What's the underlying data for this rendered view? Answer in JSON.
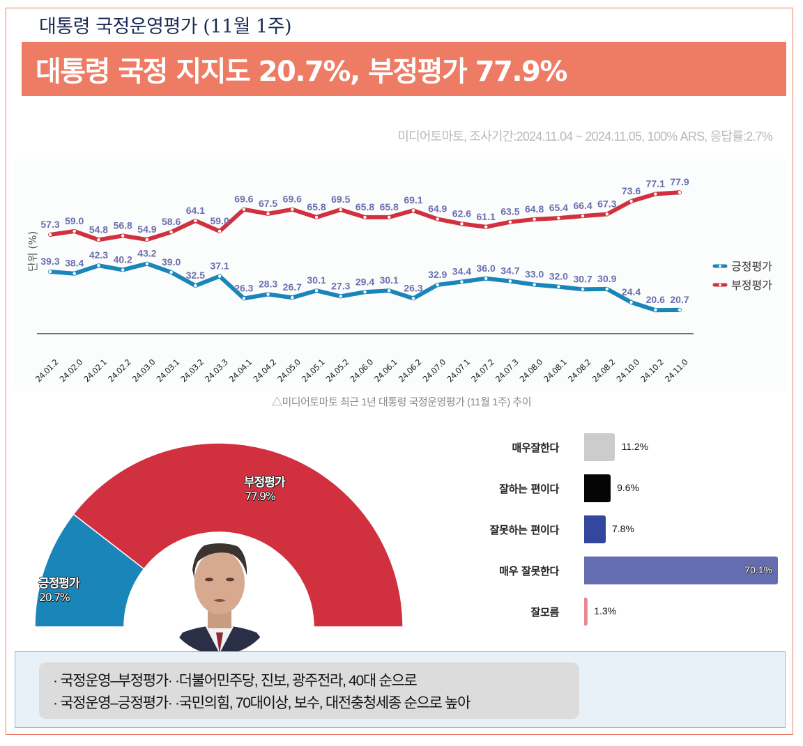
{
  "header": {
    "subtitle": "대통령 국정운영평가 (11월 1주)",
    "headline": "대통령 국정 지지도 20.7%, 부정평가 77.9%",
    "source": "미디어토마토, 조사기간:2024.11.04 ~ 2024.11.05, 100% ARS, 응답률:2.7%"
  },
  "colors": {
    "accent": "#ee7b64",
    "positive": "#1a85b8",
    "negative": "#d1303f",
    "data_label": "#6b6fae"
  },
  "chart_data": [
    {
      "type": "line",
      "title": "",
      "ylabel": "단위 (%)",
      "xlabel": "",
      "caption": "△미디어토마토 최근 1년 대통령 국정운영평가 (11월 1주) 추이",
      "legend_position": "right",
      "grid": false,
      "ylim": [
        15,
        85
      ],
      "categories": [
        "24.01.2",
        "24.02.0",
        "24.02.1",
        "24.02.2",
        "24.03.0",
        "24.03.1",
        "24.03.2",
        "24.03.3",
        "24.04.1",
        "24.04.2",
        "24.05.0",
        "24.05.1",
        "24.05.2",
        "24.06.0",
        "24.06.1",
        "24.06.2",
        "24.07.0",
        "24.07.1",
        "24.07.2",
        "24.07.3",
        "24.08.0",
        "24.08.1",
        "24.08.2",
        "24.08.2",
        "24.10.0",
        "24.10.2",
        "24.11.0"
      ],
      "series": [
        {
          "name": "긍정평가",
          "color": "#1a85b8",
          "values": [
            39.3,
            38.4,
            42.3,
            40.2,
            43.2,
            39.0,
            32.5,
            37.1,
            26.3,
            28.3,
            26.7,
            30.1,
            27.3,
            29.4,
            30.1,
            26.3,
            32.9,
            34.4,
            36.0,
            34.7,
            33.0,
            32.0,
            30.7,
            30.9,
            24.4,
            20.6,
            20.7
          ],
          "labels": [
            "39.3",
            "38.4",
            "42.3",
            "40.2",
            "43.2",
            "39.0",
            "32.5",
            "37.1",
            "26.3",
            "28.3",
            "26.7",
            "30.1",
            "27.3",
            "29.4",
            "30.1",
            "26.3",
            "32.9",
            "34.4",
            "36.0",
            "34.7",
            "33.0",
            "32.0",
            "30.7",
            "30.9",
            "24.4",
            "20.6",
            "20.7"
          ]
        },
        {
          "name": "부정평가",
          "color": "#d1303f",
          "values": [
            57.3,
            59.0,
            54.8,
            56.8,
            54.9,
            58.6,
            64.1,
            59.0,
            69.6,
            67.5,
            69.6,
            65.8,
            69.5,
            65.8,
            65.8,
            69.1,
            64.9,
            62.6,
            61.1,
            63.5,
            64.8,
            65.4,
            66.4,
            67.3,
            73.6,
            77.1,
            77.9
          ],
          "labels": [
            "57.3",
            "59.0",
            "54.8",
            "56.8",
            "54.9",
            "58.6",
            "64.1",
            "59.0",
            "69.6",
            "67.5",
            "69.6",
            "65.8",
            "69.5",
            "65.8",
            "65.8",
            "69.1",
            "64.9",
            "62.6",
            "61.1",
            "63.5",
            "64.8",
            "65.4",
            "66.4",
            "67.3",
            "73.6",
            "77.1",
            "77.9"
          ]
        }
      ]
    },
    {
      "type": "pie",
      "variant": "half-donut",
      "slices": [
        {
          "name": "긍정평가",
          "value": 20.7,
          "label": "20.7%",
          "color": "#1a85b8"
        },
        {
          "name": "부정평가",
          "value": 77.9,
          "label": "77.9%",
          "color": "#d1303f"
        }
      ]
    },
    {
      "type": "bar",
      "orientation": "horizontal",
      "categories": [
        "매우잘한다",
        "잘하는 편이다",
        "잘못하는 편이다",
        "매우 잘못한다",
        "잘모름"
      ],
      "values": [
        11.2,
        9.6,
        7.8,
        70.1,
        1.3
      ],
      "labels": [
        "11.2%",
        "9.6%",
        "7.8%",
        "70.1%",
        "1.3%"
      ],
      "colors": [
        "#cccccc",
        "#050505",
        "#33479e",
        "#646db0",
        "#e58a94"
      ]
    }
  ],
  "notes": [
    "· 국정운영–부정평가· ·더불어민주당, 진보, 광주전라, 40대 순으로",
    "· 국정운영–긍정평가· ·국민의힘, 70대이상, 보수, 대전충청세종 순으로 높아"
  ]
}
